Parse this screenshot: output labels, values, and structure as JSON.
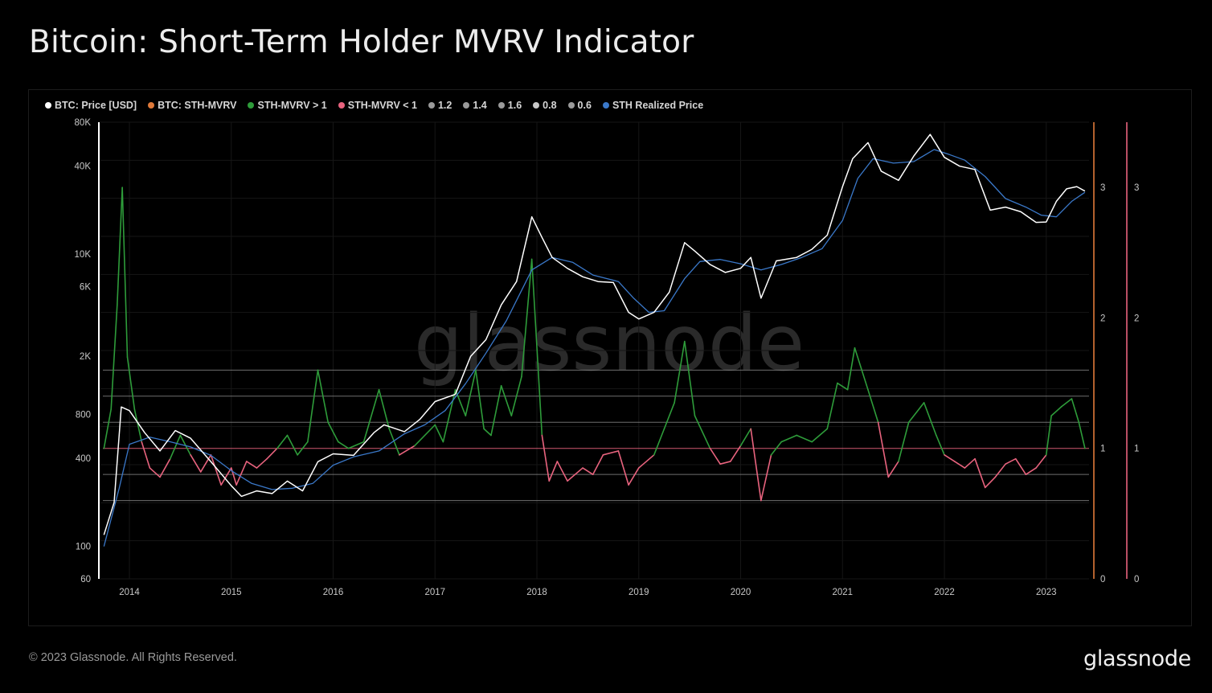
{
  "title": "Bitcoin: Short-Term Holder MVRV Indicator",
  "footer": "© 2023 Glassnode. All Rights Reserved.",
  "brand": "glassnode",
  "watermark": "glassnode",
  "legend": [
    {
      "label": "BTC: Price [USD]",
      "color": "#ffffff"
    },
    {
      "label": "BTC: STH-MVRV",
      "color": "#e07a3a"
    },
    {
      "label": "STH-MVRV > 1",
      "color": "#2e9c3a"
    },
    {
      "label": "STH-MVRV < 1",
      "color": "#e8637e"
    },
    {
      "label": "1.2",
      "color": "#9a9a9a"
    },
    {
      "label": "1.4",
      "color": "#9a9a9a"
    },
    {
      "label": "1.6",
      "color": "#9a9a9a"
    },
    {
      "label": "0.8",
      "color": "#c8c8c8"
    },
    {
      "label": "0.6",
      "color": "#9a9a9a"
    },
    {
      "label": "STH Realized Price",
      "color": "#3a78c9"
    }
  ],
  "chart_data": {
    "type": "line",
    "title": "Bitcoin: Short-Term Holder MVRV Indicator",
    "x_ticks": [
      "2014",
      "2015",
      "2016",
      "2017",
      "2018",
      "2019",
      "2020",
      "2021",
      "2022",
      "2023"
    ],
    "y_left_ticks": [
      "80K",
      "40K",
      "10K",
      "6K",
      "2K",
      "800",
      "400",
      "100",
      "60"
    ],
    "y_left_scale": "log",
    "y_left_range": [
      60,
      80000
    ],
    "y_right_ticks": [
      "3",
      "2",
      "1",
      "0"
    ],
    "y_right_range": [
      0,
      3.5
    ],
    "y_right2_ticks": [
      "3",
      "2",
      "1",
      "0"
    ],
    "thresholds": [
      0.6,
      0.8,
      1,
      1.2,
      1.4,
      1.6
    ],
    "grid": true,
    "legend_position": "top-left",
    "series": [
      {
        "name": "BTC: Price [USD]",
        "color": "#ffffff",
        "axis": "left",
        "points": [
          [
            2013.75,
            120
          ],
          [
            2013.85,
            200
          ],
          [
            2013.92,
            900
          ],
          [
            2014.0,
            850
          ],
          [
            2014.15,
            600
          ],
          [
            2014.3,
            450
          ],
          [
            2014.45,
            620
          ],
          [
            2014.6,
            550
          ],
          [
            2014.8,
            380
          ],
          [
            2015.0,
            260
          ],
          [
            2015.1,
            220
          ],
          [
            2015.25,
            240
          ],
          [
            2015.4,
            230
          ],
          [
            2015.55,
            280
          ],
          [
            2015.7,
            240
          ],
          [
            2015.85,
            380
          ],
          [
            2016.0,
            430
          ],
          [
            2016.2,
            420
          ],
          [
            2016.4,
            600
          ],
          [
            2016.5,
            680
          ],
          [
            2016.7,
            610
          ],
          [
            2016.85,
            740
          ],
          [
            2017.0,
            980
          ],
          [
            2017.2,
            1100
          ],
          [
            2017.35,
            2000
          ],
          [
            2017.5,
            2600
          ],
          [
            2017.65,
            4500
          ],
          [
            2017.8,
            6500
          ],
          [
            2017.95,
            18000
          ],
          [
            2018.05,
            13000
          ],
          [
            2018.15,
            9500
          ],
          [
            2018.3,
            8000
          ],
          [
            2018.45,
            7000
          ],
          [
            2018.6,
            6500
          ],
          [
            2018.75,
            6400
          ],
          [
            2018.9,
            4000
          ],
          [
            2019.0,
            3600
          ],
          [
            2019.15,
            4000
          ],
          [
            2019.3,
            5500
          ],
          [
            2019.45,
            12000
          ],
          [
            2019.55,
            10500
          ],
          [
            2019.7,
            8500
          ],
          [
            2019.85,
            7500
          ],
          [
            2020.0,
            8000
          ],
          [
            2020.1,
            9500
          ],
          [
            2020.2,
            5000
          ],
          [
            2020.35,
            9000
          ],
          [
            2020.55,
            9500
          ],
          [
            2020.7,
            10800
          ],
          [
            2020.85,
            13500
          ],
          [
            2021.0,
            29000
          ],
          [
            2021.1,
            45000
          ],
          [
            2021.25,
            58000
          ],
          [
            2021.38,
            37000
          ],
          [
            2021.55,
            32000
          ],
          [
            2021.7,
            47000
          ],
          [
            2021.86,
            66000
          ],
          [
            2022.0,
            46000
          ],
          [
            2022.15,
            40000
          ],
          [
            2022.3,
            38000
          ],
          [
            2022.45,
            20000
          ],
          [
            2022.6,
            21000
          ],
          [
            2022.75,
            19500
          ],
          [
            2022.9,
            16500
          ],
          [
            2023.0,
            16600
          ],
          [
            2023.1,
            23000
          ],
          [
            2023.2,
            28000
          ],
          [
            2023.3,
            29000
          ],
          [
            2023.38,
            27000
          ]
        ]
      },
      {
        "name": "STH Realized Price",
        "color": "#3a78c9",
        "axis": "left",
        "points": [
          [
            2013.75,
            100
          ],
          [
            2013.9,
            250
          ],
          [
            2014.0,
            500
          ],
          [
            2014.2,
            560
          ],
          [
            2014.4,
            520
          ],
          [
            2014.6,
            480
          ],
          [
            2014.8,
            420
          ],
          [
            2015.0,
            330
          ],
          [
            2015.2,
            270
          ],
          [
            2015.4,
            245
          ],
          [
            2015.6,
            250
          ],
          [
            2015.8,
            270
          ],
          [
            2016.0,
            360
          ],
          [
            2016.2,
            410
          ],
          [
            2016.45,
            450
          ],
          [
            2016.7,
            590
          ],
          [
            2016.9,
            680
          ],
          [
            2017.1,
            850
          ],
          [
            2017.3,
            1300
          ],
          [
            2017.5,
            2100
          ],
          [
            2017.7,
            3500
          ],
          [
            2017.95,
            7800
          ],
          [
            2018.15,
            9500
          ],
          [
            2018.35,
            8800
          ],
          [
            2018.55,
            7200
          ],
          [
            2018.8,
            6500
          ],
          [
            2018.95,
            5000
          ],
          [
            2019.1,
            4000
          ],
          [
            2019.25,
            4100
          ],
          [
            2019.45,
            6800
          ],
          [
            2019.6,
            8900
          ],
          [
            2019.8,
            9200
          ],
          [
            2020.0,
            8600
          ],
          [
            2020.2,
            7800
          ],
          [
            2020.4,
            8500
          ],
          [
            2020.6,
            9500
          ],
          [
            2020.8,
            10900
          ],
          [
            2021.0,
            17000
          ],
          [
            2021.15,
            33000
          ],
          [
            2021.3,
            45000
          ],
          [
            2021.5,
            42000
          ],
          [
            2021.7,
            43000
          ],
          [
            2021.9,
            52000
          ],
          [
            2022.05,
            48000
          ],
          [
            2022.2,
            44000
          ],
          [
            2022.4,
            34000
          ],
          [
            2022.6,
            24000
          ],
          [
            2022.8,
            21000
          ],
          [
            2022.95,
            18500
          ],
          [
            2023.1,
            18000
          ],
          [
            2023.25,
            23000
          ],
          [
            2023.38,
            26500
          ]
        ]
      },
      {
        "name": "BTC: STH-MVRV",
        "axis": "right",
        "above_color": "#2e9c3a",
        "below_color": "#e8637e",
        "points": [
          [
            2013.75,
            1.0
          ],
          [
            2013.82,
            1.3
          ],
          [
            2013.88,
            2.1
          ],
          [
            2013.93,
            3.0
          ],
          [
            2013.98,
            1.7
          ],
          [
            2014.05,
            1.3
          ],
          [
            2014.12,
            1.05
          ],
          [
            2014.2,
            0.85
          ],
          [
            2014.3,
            0.78
          ],
          [
            2014.4,
            0.92
          ],
          [
            2014.5,
            1.1
          ],
          [
            2014.6,
            0.95
          ],
          [
            2014.7,
            0.82
          ],
          [
            2014.8,
            0.95
          ],
          [
            2014.9,
            0.72
          ],
          [
            2015.0,
            0.85
          ],
          [
            2015.05,
            0.72
          ],
          [
            2015.15,
            0.9
          ],
          [
            2015.25,
            0.85
          ],
          [
            2015.35,
            0.92
          ],
          [
            2015.45,
            1.0
          ],
          [
            2015.55,
            1.1
          ],
          [
            2015.65,
            0.95
          ],
          [
            2015.75,
            1.05
          ],
          [
            2015.85,
            1.6
          ],
          [
            2015.95,
            1.2
          ],
          [
            2016.05,
            1.05
          ],
          [
            2016.15,
            1.0
          ],
          [
            2016.3,
            1.05
          ],
          [
            2016.45,
            1.45
          ],
          [
            2016.55,
            1.15
          ],
          [
            2016.65,
            0.95
          ],
          [
            2016.8,
            1.02
          ],
          [
            2017.0,
            1.18
          ],
          [
            2017.08,
            1.05
          ],
          [
            2017.2,
            1.45
          ],
          [
            2017.3,
            1.25
          ],
          [
            2017.4,
            1.6
          ],
          [
            2017.48,
            1.15
          ],
          [
            2017.55,
            1.1
          ],
          [
            2017.65,
            1.48
          ],
          [
            2017.75,
            1.25
          ],
          [
            2017.85,
            1.55
          ],
          [
            2017.95,
            2.45
          ],
          [
            2018.05,
            1.1
          ],
          [
            2018.12,
            0.75
          ],
          [
            2018.2,
            0.9
          ],
          [
            2018.3,
            0.75
          ],
          [
            2018.45,
            0.85
          ],
          [
            2018.55,
            0.8
          ],
          [
            2018.65,
            0.95
          ],
          [
            2018.8,
            0.98
          ],
          [
            2018.9,
            0.72
          ],
          [
            2019.0,
            0.85
          ],
          [
            2019.15,
            0.95
          ],
          [
            2019.25,
            1.15
          ],
          [
            2019.35,
            1.35
          ],
          [
            2019.45,
            1.82
          ],
          [
            2019.55,
            1.25
          ],
          [
            2019.7,
            1.0
          ],
          [
            2019.8,
            0.88
          ],
          [
            2019.9,
            0.9
          ],
          [
            2020.0,
            1.02
          ],
          [
            2020.1,
            1.15
          ],
          [
            2020.2,
            0.6
          ],
          [
            2020.3,
            0.95
          ],
          [
            2020.4,
            1.05
          ],
          [
            2020.55,
            1.1
          ],
          [
            2020.7,
            1.05
          ],
          [
            2020.85,
            1.15
          ],
          [
            2020.95,
            1.5
          ],
          [
            2021.05,
            1.45
          ],
          [
            2021.12,
            1.77
          ],
          [
            2021.25,
            1.45
          ],
          [
            2021.35,
            1.2
          ],
          [
            2021.45,
            0.78
          ],
          [
            2021.55,
            0.9
          ],
          [
            2021.65,
            1.2
          ],
          [
            2021.8,
            1.35
          ],
          [
            2021.92,
            1.1
          ],
          [
            2022.0,
            0.95
          ],
          [
            2022.1,
            0.9
          ],
          [
            2022.2,
            0.85
          ],
          [
            2022.3,
            0.92
          ],
          [
            2022.4,
            0.7
          ],
          [
            2022.5,
            0.78
          ],
          [
            2022.6,
            0.88
          ],
          [
            2022.7,
            0.92
          ],
          [
            2022.8,
            0.8
          ],
          [
            2022.9,
            0.85
          ],
          [
            2023.0,
            0.95
          ],
          [
            2023.05,
            1.25
          ],
          [
            2023.15,
            1.32
          ],
          [
            2023.25,
            1.38
          ],
          [
            2023.32,
            1.2
          ],
          [
            2023.38,
            1.0
          ]
        ]
      }
    ]
  }
}
